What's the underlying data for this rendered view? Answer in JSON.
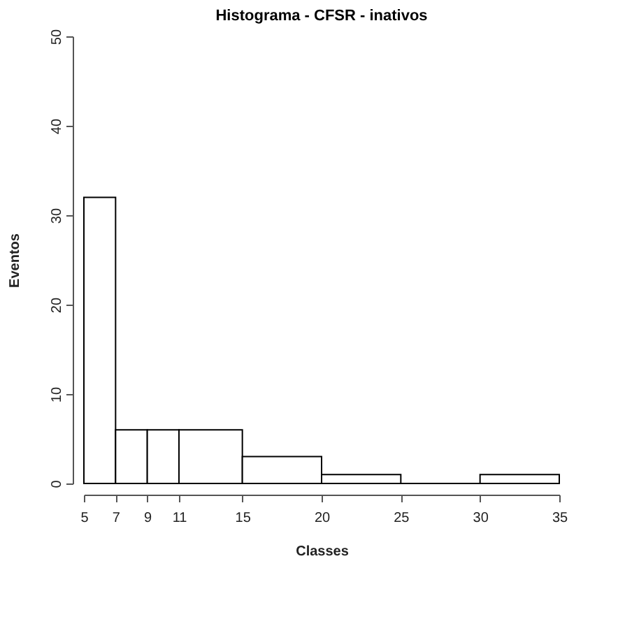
{
  "chart_data": {
    "type": "histogram",
    "title": "Histograma - CFSR - inativos",
    "xlabel": "Classes",
    "ylabel": "Eventos",
    "bins": [
      5,
      7,
      9,
      11,
      15,
      20,
      25,
      30,
      35
    ],
    "values": [
      32,
      6,
      6,
      6,
      3,
      1,
      0,
      1
    ],
    "xlim": [
      5,
      35
    ],
    "xticks": [
      5,
      7,
      9,
      11,
      15,
      20,
      25,
      30,
      35
    ],
    "ylim": [
      0,
      50
    ],
    "yticks": [
      0,
      10,
      20,
      30,
      40,
      50
    ],
    "grid": false
  }
}
